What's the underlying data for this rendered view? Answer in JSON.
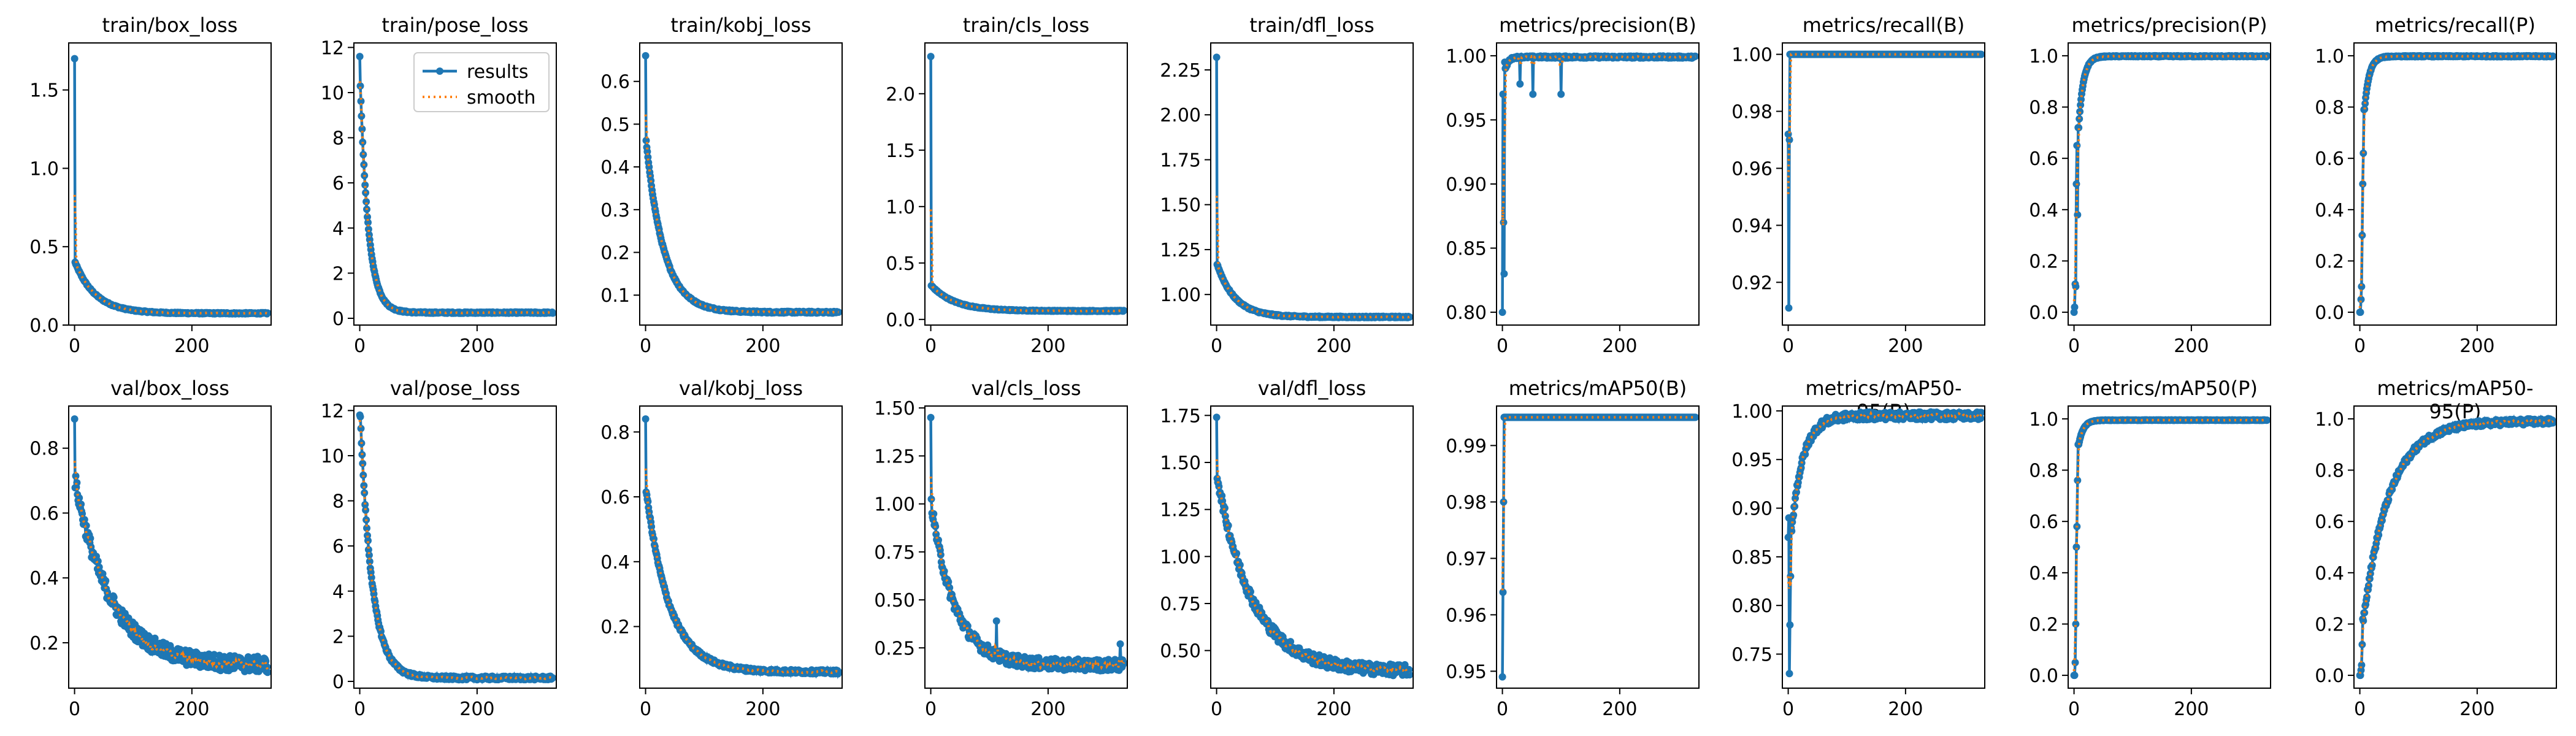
{
  "legend": {
    "results_label": "results",
    "smooth_label": "smooth"
  },
  "colors": {
    "results": "#1f77b4",
    "smooth": "#ff7f0e",
    "axis": "#000000"
  },
  "chart_data": [
    {
      "type": "line",
      "title": "train/box_loss",
      "xlim": [
        -10,
        335
      ],
      "ylim": [
        0,
        1.8
      ],
      "yticks": [
        0.0,
        0.5,
        1.0,
        1.5
      ],
      "ytick_labels": [
        "0.0",
        "0.5",
        "1.0",
        "1.5"
      ],
      "xticks": [
        0,
        200
      ],
      "shape": "decay",
      "start": 1.7,
      "second": 0.4,
      "end": 0.075,
      "tau": 35,
      "noise": 0.004,
      "outliers": [],
      "legend": false
    },
    {
      "type": "line",
      "title": "train/pose_loss",
      "xlim": [
        -10,
        335
      ],
      "ylim": [
        -0.3,
        12.2
      ],
      "yticks": [
        0,
        2,
        4,
        6,
        8,
        10,
        12
      ],
      "ytick_labels": [
        "0",
        "2",
        "4",
        "6",
        "8",
        "10",
        "12"
      ],
      "xticks": [
        0,
        200
      ],
      "shape": "decay",
      "start": 11.6,
      "second": 10.3,
      "end": 0.25,
      "tau": 14,
      "noise": 0.03,
      "outliers": [],
      "legend": true
    },
    {
      "type": "line",
      "title": "train/kobj_loss",
      "xlim": [
        -10,
        335
      ],
      "ylim": [
        0.03,
        0.69
      ],
      "yticks": [
        0.1,
        0.2,
        0.3,
        0.4,
        0.5,
        0.6
      ],
      "ytick_labels": [
        "0.1",
        "0.2",
        "0.3",
        "0.4",
        "0.5",
        "0.6"
      ],
      "xticks": [
        0,
        200
      ],
      "shape": "decay",
      "start": 0.66,
      "second": 0.46,
      "end": 0.06,
      "tau": 30,
      "noise": 0.002,
      "outliers": [],
      "legend": false
    },
    {
      "type": "line",
      "title": "train/cls_loss",
      "xlim": [
        -10,
        335
      ],
      "ylim": [
        -0.05,
        2.45
      ],
      "yticks": [
        0.0,
        0.5,
        1.0,
        1.5,
        2.0
      ],
      "ytick_labels": [
        "0.0",
        "0.5",
        "1.0",
        "1.5",
        "2.0"
      ],
      "xticks": [
        0,
        200
      ],
      "shape": "decay",
      "start": 2.33,
      "second": 0.3,
      "end": 0.075,
      "tau": 40,
      "noise": 0.004,
      "outliers": [],
      "legend": false
    },
    {
      "type": "line",
      "title": "train/dfl_loss",
      "xlim": [
        -10,
        335
      ],
      "ylim": [
        0.83,
        2.4
      ],
      "yticks": [
        1.0,
        1.25,
        1.5,
        1.75,
        2.0,
        2.25
      ],
      "ytick_labels": [
        "1.00",
        "1.25",
        "1.50",
        "1.75",
        "2.00",
        "2.25"
      ],
      "xticks": [
        0,
        200
      ],
      "shape": "decay",
      "start": 2.32,
      "second": 1.17,
      "end": 0.875,
      "tau": 30,
      "noise": 0.004,
      "outliers": [],
      "legend": false
    },
    {
      "type": "line",
      "title": "metrics/precision(B)",
      "xlim": [
        -10,
        335
      ],
      "ylim": [
        0.79,
        1.01
      ],
      "yticks": [
        0.8,
        0.85,
        0.9,
        0.95,
        1.0
      ],
      "ytick_labels": [
        "0.80",
        "0.85",
        "0.90",
        "0.95",
        "1.00"
      ],
      "xticks": [
        0,
        200
      ],
      "shape": "sat",
      "plateau": 0.999,
      "k": 5,
      "init": [
        0.8,
        0.97,
        0.87,
        0.83,
        0.995,
        0.99
      ],
      "noise": 0.0008,
      "outliers": [
        [
          30,
          0.978
        ],
        [
          52,
          0.97
        ],
        [
          100,
          0.97
        ]
      ],
      "legend": false
    },
    {
      "type": "line",
      "title": "metrics/recall(B)",
      "xlim": [
        -10,
        335
      ],
      "ylim": [
        0.905,
        1.004
      ],
      "yticks": [
        0.92,
        0.94,
        0.96,
        0.98,
        1.0
      ],
      "ytick_labels": [
        "0.92",
        "0.94",
        "0.96",
        "0.98",
        "1.00"
      ],
      "xticks": [
        0,
        200
      ],
      "shape": "sat",
      "plateau": 1.0,
      "k": 3,
      "init": [
        0.972,
        0.911,
        0.97,
        1.0
      ],
      "noise": 0,
      "outliers": [],
      "legend": false
    },
    {
      "type": "line",
      "title": "metrics/precision(P)",
      "xlim": [
        -10,
        335
      ],
      "ylim": [
        -0.05,
        1.05
      ],
      "yticks": [
        0.0,
        0.2,
        0.4,
        0.6,
        0.8,
        1.0
      ],
      "ytick_labels": [
        "0.0",
        "0.2",
        "0.4",
        "0.6",
        "0.8",
        "1.0"
      ],
      "xticks": [
        0,
        200
      ],
      "shape": "sat",
      "plateau": 0.998,
      "k": 8,
      "init": [
        0.0,
        0.02,
        0.11,
        0.1,
        0.5,
        0.65,
        0.38,
        0.72
      ],
      "noise": 0.002,
      "outliers": [],
      "legend": false
    },
    {
      "type": "line",
      "title": "metrics/recall(P)",
      "xlim": [
        -10,
        335
      ],
      "ylim": [
        -0.05,
        1.05
      ],
      "yticks": [
        0.0,
        0.2,
        0.4,
        0.6,
        0.8,
        1.0
      ],
      "ytick_labels": [
        "0.0",
        "0.2",
        "0.4",
        "0.6",
        "0.8",
        "1.0"
      ],
      "xticks": [
        0,
        200
      ],
      "shape": "sat",
      "plateau": 0.998,
      "k": 8,
      "init": [
        0.0,
        0.0,
        0.05,
        0.1,
        0.3,
        0.5,
        0.62,
        0.79
      ],
      "noise": 0.002,
      "outliers": [],
      "legend": false
    },
    {
      "type": "line",
      "title": "val/box_loss",
      "xlim": [
        -10,
        335
      ],
      "ylim": [
        0.06,
        0.93
      ],
      "yticks": [
        0.2,
        0.4,
        0.6,
        0.8
      ],
      "ytick_labels": [
        "0.2",
        "0.4",
        "0.6",
        "0.8"
      ],
      "xticks": [
        0,
        200
      ],
      "shape": "decay",
      "start": 0.89,
      "second": 0.7,
      "end": 0.13,
      "tau": 60,
      "noise": 0.025,
      "outliers": [],
      "legend": false
    },
    {
      "type": "line",
      "title": "val/pose_loss",
      "xlim": [
        -10,
        335
      ],
      "ylim": [
        -0.3,
        12.2
      ],
      "yticks": [
        0,
        2,
        4,
        6,
        8,
        10,
        12
      ],
      "ytick_labels": [
        "0",
        "2",
        "4",
        "6",
        "8",
        "10",
        "12"
      ],
      "xticks": [
        0,
        200
      ],
      "shape": "decay",
      "start": 11.8,
      "second": 11.7,
      "end": 0.15,
      "tau": 20,
      "noise": 0.08,
      "outliers": [],
      "legend": false
    },
    {
      "type": "line",
      "title": "val/kobj_loss",
      "xlim": [
        -10,
        335
      ],
      "ylim": [
        0.01,
        0.88
      ],
      "yticks": [
        0.2,
        0.4,
        0.6,
        0.8
      ],
      "ytick_labels": [
        "0.2",
        "0.4",
        "0.6",
        "0.8"
      ],
      "xticks": [
        0,
        200
      ],
      "shape": "decay",
      "start": 0.84,
      "second": 0.62,
      "end": 0.06,
      "tau": 40,
      "noise": 0.006,
      "outliers": [],
      "legend": false
    },
    {
      "type": "line",
      "title": "val/cls_loss",
      "xlim": [
        -10,
        335
      ],
      "ylim": [
        0.04,
        1.51
      ],
      "yticks": [
        0.25,
        0.5,
        0.75,
        1.0,
        1.25,
        1.5
      ],
      "ytick_labels": [
        "0.25",
        "0.50",
        "0.75",
        "1.00",
        "1.25",
        "1.50"
      ],
      "xticks": [
        0,
        200
      ],
      "shape": "decay",
      "start": 1.45,
      "second": 1.0,
      "end": 0.16,
      "tau": 40,
      "noise": 0.03,
      "outliers": [
        [
          112,
          0.39
        ],
        [
          323,
          0.27
        ]
      ],
      "legend": false
    },
    {
      "type": "line",
      "title": "val/dfl_loss",
      "xlim": [
        -10,
        335
      ],
      "ylim": [
        0.3,
        1.8
      ],
      "yticks": [
        0.5,
        0.75,
        1.0,
        1.25,
        1.5,
        1.75
      ],
      "ytick_labels": [
        "0.50",
        "0.75",
        "1.00",
        "1.25",
        "1.50",
        "1.75"
      ],
      "xticks": [
        0,
        200
      ],
      "shape": "decay",
      "start": 1.74,
      "second": 1.43,
      "end": 0.39,
      "tau": 60,
      "noise": 0.03,
      "outliers": [],
      "legend": false
    },
    {
      "type": "line",
      "title": "metrics/mAP50(B)",
      "xlim": [
        -10,
        335
      ],
      "ylim": [
        0.947,
        0.997
      ],
      "yticks": [
        0.95,
        0.96,
        0.97,
        0.98,
        0.99
      ],
      "ytick_labels": [
        "0.95",
        "0.96",
        "0.97",
        "0.98",
        "0.99"
      ],
      "xticks": [
        0,
        200
      ],
      "shape": "sat",
      "plateau": 0.995,
      "k": 3,
      "init": [
        0.949,
        0.964,
        0.98,
        0.995
      ],
      "noise": 0,
      "outliers": [],
      "legend": false
    },
    {
      "type": "line",
      "title": "metrics/mAP50-95(B)",
      "xlim": [
        -10,
        335
      ],
      "ylim": [
        0.715,
        1.005
      ],
      "yticks": [
        0.75,
        0.8,
        0.85,
        0.9,
        0.95,
        1.0
      ],
      "ytick_labels": [
        "0.75",
        "0.80",
        "0.85",
        "0.90",
        "0.95",
        "1.00"
      ],
      "xticks": [
        0,
        200
      ],
      "shape": "sat",
      "plateau": 0.995,
      "k": 20,
      "init": [
        0.87,
        0.89,
        0.73,
        0.78,
        0.83,
        0.88
      ],
      "noise": 0.004,
      "outliers": [],
      "legend": false
    },
    {
      "type": "line",
      "title": "metrics/mAP50(P)",
      "xlim": [
        -10,
        335
      ],
      "ylim": [
        -0.05,
        1.05
      ],
      "yticks": [
        0.0,
        0.2,
        0.4,
        0.6,
        0.8,
        1.0
      ],
      "ytick_labels": [
        "0.0",
        "0.2",
        "0.4",
        "0.6",
        "0.8",
        "1.0"
      ],
      "xticks": [
        0,
        200
      ],
      "shape": "sat",
      "plateau": 0.995,
      "k": 8,
      "init": [
        0.0,
        0.0,
        0.05,
        0.2,
        0.5,
        0.58,
        0.76,
        0.9
      ],
      "noise": 0.001,
      "outliers": [],
      "legend": false
    },
    {
      "type": "line",
      "title": "metrics/mAP50-95(P)",
      "xlim": [
        -10,
        335
      ],
      "ylim": [
        -0.05,
        1.05
      ],
      "yticks": [
        0.0,
        0.2,
        0.4,
        0.6,
        0.8,
        1.0
      ],
      "ytick_labels": [
        "0.0",
        "0.2",
        "0.4",
        "0.6",
        "0.8",
        "1.0"
      ],
      "xticks": [
        0,
        200
      ],
      "shape": "sat",
      "plateau": 0.99,
      "k": 45,
      "init": [
        0.0,
        0.0,
        0.02,
        0.04,
        0.12,
        0.22
      ],
      "noise": 0.012,
      "outliers": [],
      "legend": false
    }
  ]
}
